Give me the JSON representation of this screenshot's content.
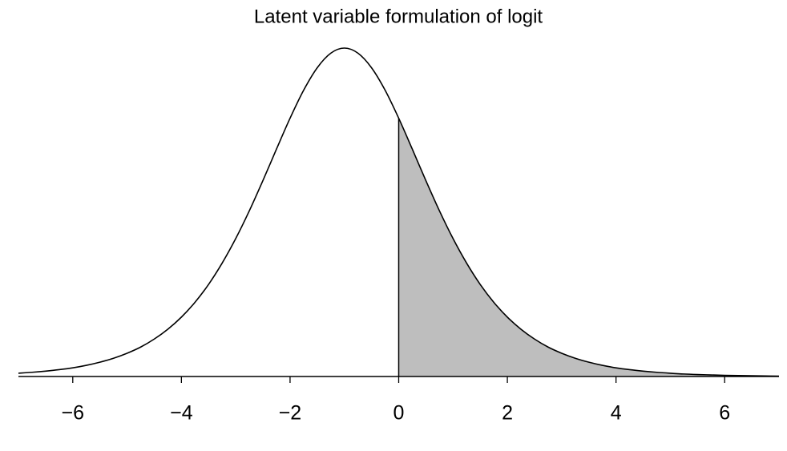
{
  "chart_data": {
    "type": "density",
    "title": "Latent variable formulation of logit",
    "x": [
      -7,
      -6.75,
      -6.5,
      -6.25,
      -6,
      -5.75,
      -5.5,
      -5.25,
      -5,
      -4.75,
      -4.5,
      -4.25,
      -4,
      -3.75,
      -3.5,
      -3.25,
      -3,
      -2.75,
      -2.5,
      -2.25,
      -2,
      -1.75,
      -1.5,
      -1.25,
      -1,
      -0.75,
      -0.5,
      -0.25,
      0,
      0.25,
      0.5,
      0.75,
      1,
      1.25,
      1.5,
      1.75,
      2,
      2.25,
      2.5,
      2.75,
      3,
      3.25,
      3.5,
      3.75,
      4,
      4.25,
      4.5,
      4.75,
      5,
      5.25,
      5.5,
      5.75,
      6,
      6.25,
      6.5,
      6.75,
      7
    ],
    "values": [
      0.0025,
      0.0032,
      0.0041,
      0.0052,
      0.0066,
      0.0085,
      0.0109,
      0.0139,
      0.0177,
      0.0224,
      0.0285,
      0.036,
      0.0452,
      0.0565,
      0.0701,
      0.0863,
      0.105,
      0.1261,
      0.1491,
      0.1731,
      0.1966,
      0.2179,
      0.235,
      0.2461,
      0.25,
      0.2461,
      0.235,
      0.2179,
      0.1966,
      0.1731,
      0.1491,
      0.1261,
      0.105,
      0.0863,
      0.0701,
      0.0565,
      0.0452,
      0.036,
      0.0285,
      0.0224,
      0.0177,
      0.0139,
      0.0109,
      0.0085,
      0.0066,
      0.0052,
      0.0041,
      0.0032,
      0.0025,
      0.0019,
      0.0015,
      0.0012,
      0.0009,
      0.0007,
      0.0006,
      0.0004,
      0.0003
    ],
    "color": "#000000",
    "fill": {
      "from": 0,
      "color": "#bebebe"
    },
    "xlim": [
      -7,
      7
    ],
    "ylim": [
      0,
      0.25
    ],
    "xticks": [
      {
        "value": -6,
        "label": "−6"
      },
      {
        "value": -4,
        "label": "−4"
      },
      {
        "value": -2,
        "label": "−2"
      },
      0,
      2,
      4,
      6
    ]
  }
}
